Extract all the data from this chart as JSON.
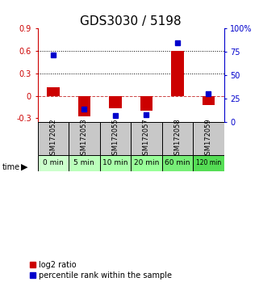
{
  "title": "GDS3030 / 5198",
  "samples": [
    "GSM172052",
    "GSM172053",
    "GSM172055",
    "GSM172057",
    "GSM172058",
    "GSM172059"
  ],
  "time_labels": [
    "0 min",
    "5 min",
    "10 min",
    "20 min",
    "60 min",
    "120 min"
  ],
  "log2_ratio": [
    0.12,
    -0.27,
    -0.17,
    -0.2,
    0.6,
    -0.12
  ],
  "percentile_rank": [
    72,
    14,
    7,
    8,
    85,
    30
  ],
  "bar_color": "#cc0000",
  "dot_color": "#0000cc",
  "ylim_left": [
    -0.35,
    0.9
  ],
  "ylim_right": [
    0,
    100
  ],
  "yticks_left": [
    -0.3,
    0.0,
    0.3,
    0.6,
    0.9
  ],
  "yticks_right": [
    0,
    25,
    50,
    75,
    100
  ],
  "ytick_labels_left": [
    "-0.3",
    "0",
    "0.3",
    "0.6",
    "0.9"
  ],
  "ytick_labels_right": [
    "0",
    "25",
    "50",
    "75",
    "100%"
  ],
  "hlines": [
    0.3,
    0.6
  ],
  "bg_color_time": [
    "#ccffcc",
    "#bbffbb",
    "#aaffaa",
    "#99ff99",
    "#77ee77",
    "#55dd55"
  ],
  "bar_width": 0.4,
  "title_fontsize": 11,
  "tick_fontsize": 7,
  "legend_fontsize": 7
}
